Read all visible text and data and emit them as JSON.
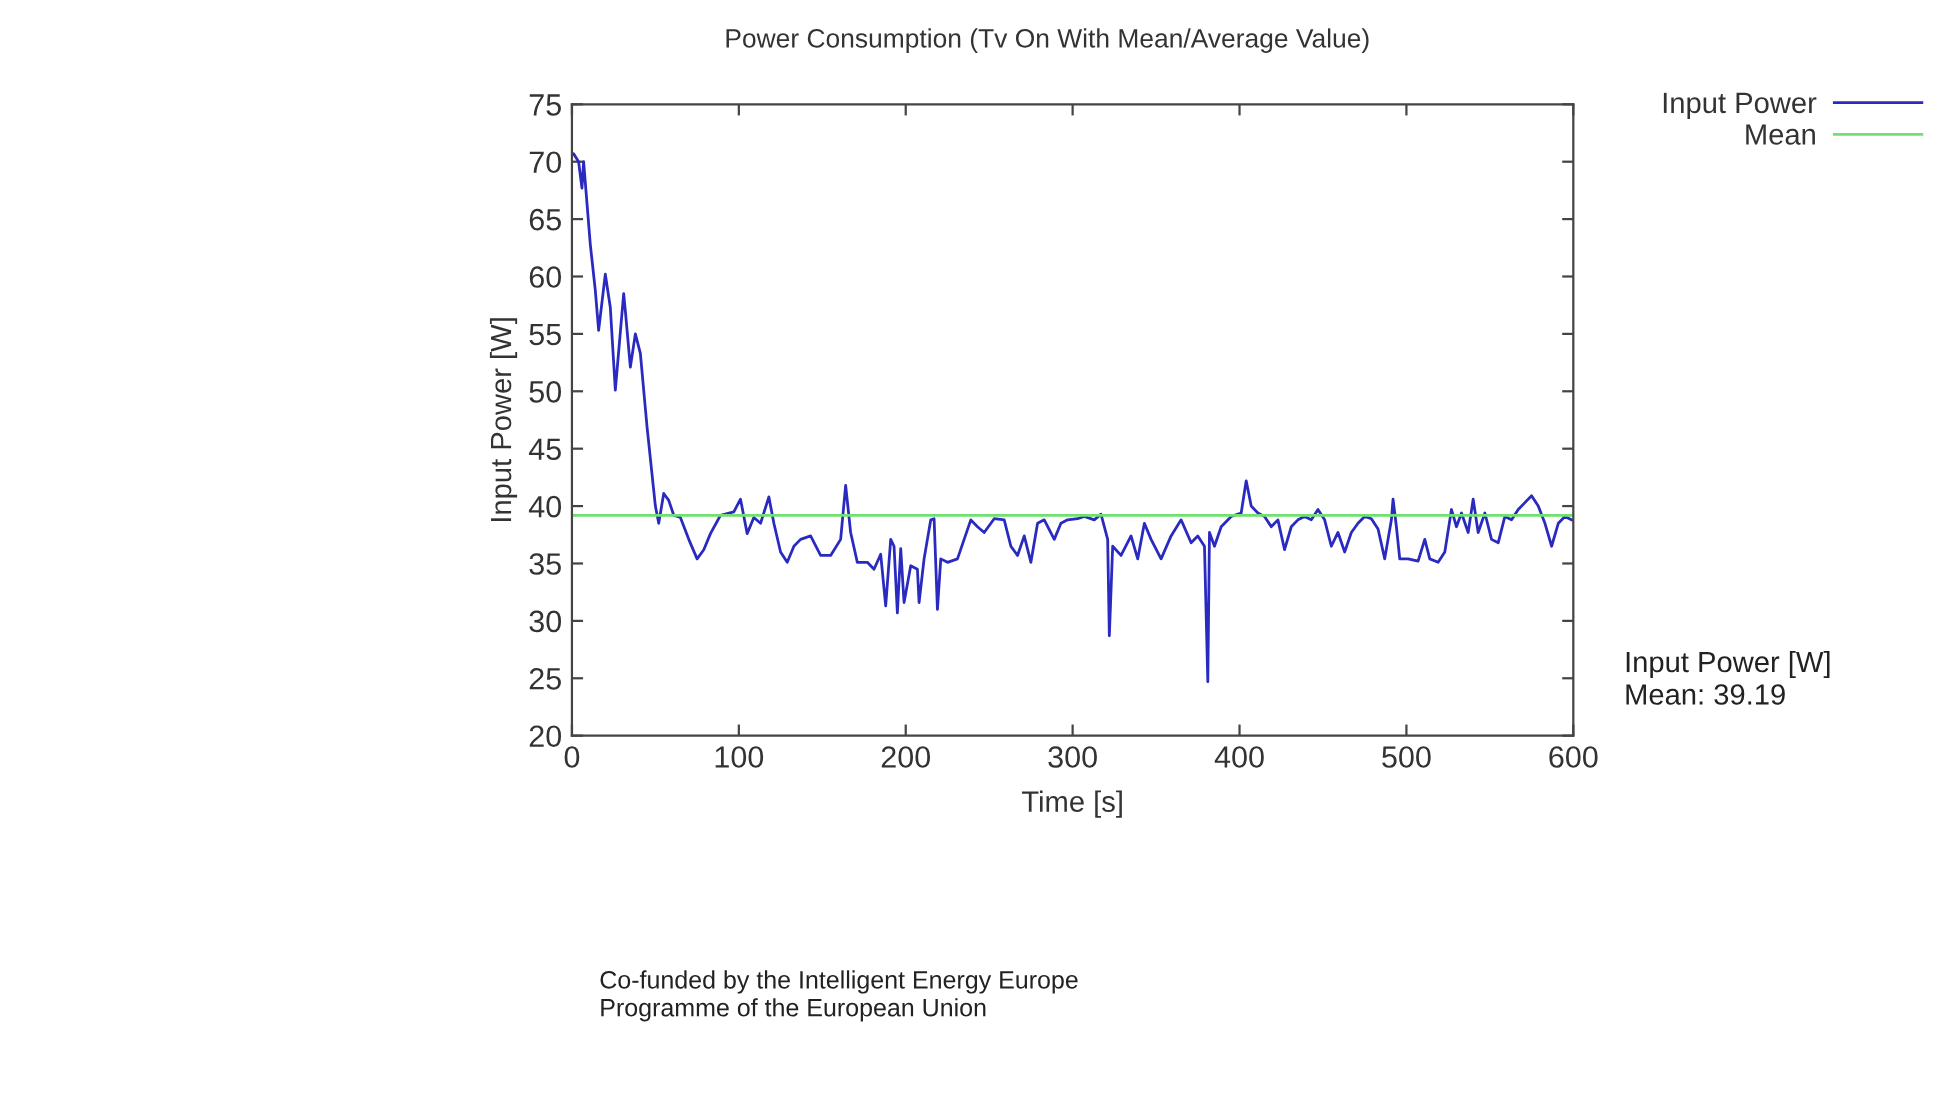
{
  "chart_data": {
    "type": "line",
    "title": "Power Consumption (Tv On With Mean/Average Value)",
    "xlabel": "Time [s]",
    "ylabel": "Input Power [W]",
    "x": [
      0,
      1,
      4,
      6,
      7,
      11,
      14,
      16,
      20,
      23,
      26,
      31,
      32,
      35,
      38,
      41,
      45,
      50,
      52,
      55,
      58,
      61,
      65,
      70,
      75,
      79,
      83,
      89,
      97,
      101,
      105,
      109,
      113,
      118,
      121,
      125,
      129,
      133,
      137,
      143,
      149,
      155,
      161,
      164,
      167,
      171,
      177,
      181,
      185,
      188,
      191,
      193,
      195,
      197,
      199,
      203,
      207,
      208,
      211,
      215,
      217,
      219,
      221,
      225,
      231,
      239,
      243,
      247,
      253,
      259,
      263,
      267,
      271,
      275,
      279,
      283,
      289,
      293,
      297,
      303,
      307,
      313,
      317,
      321,
      322,
      324,
      329,
      335,
      339,
      343,
      347,
      353,
      359,
      365,
      371,
      375,
      379,
      381,
      382,
      385,
      389,
      395,
      401,
      404,
      407,
      411,
      415,
      419,
      423,
      427,
      431,
      435,
      439,
      443,
      447,
      451,
      455,
      459,
      463,
      467,
      471,
      475,
      479,
      483,
      487,
      491,
      492,
      494,
      496,
      501,
      507,
      511,
      514,
      519,
      523,
      527,
      530,
      533,
      537,
      540,
      543,
      547,
      551,
      555,
      559,
      563,
      567,
      571,
      575,
      579,
      583,
      587,
      591,
      595,
      599
    ],
    "series": [
      {
        "name": "Input Power",
        "color": "#2a2ac0",
        "values": [
          70.6,
          70.7,
          70.0,
          67.7,
          70.0,
          62.8,
          58.8,
          55.3,
          60.2,
          57.3,
          50.1,
          58.5,
          57.0,
          52.1,
          55.0,
          53.3,
          46.9,
          40.0,
          38.5,
          41.1,
          40.5,
          39.2,
          39.0,
          37.1,
          35.4,
          36.2,
          37.6,
          39.2,
          39.5,
          40.6,
          37.6,
          39.0,
          38.5,
          40.8,
          38.5,
          36.0,
          35.1,
          36.5,
          37.1,
          37.4,
          35.7,
          35.7,
          37.1,
          41.8,
          37.7,
          35.1,
          35.1,
          34.5,
          35.8,
          31.3,
          37.1,
          36.5,
          30.7,
          36.3,
          31.6,
          34.8,
          34.5,
          31.6,
          35.4,
          38.8,
          38.9,
          31.0,
          35.4,
          35.1,
          35.4,
          38.8,
          38.2,
          37.7,
          38.9,
          38.8,
          36.5,
          35.7,
          37.4,
          35.1,
          38.5,
          38.8,
          37.1,
          38.5,
          38.8,
          38.9,
          39.1,
          38.8,
          39.3,
          37.1,
          28.7,
          36.5,
          35.7,
          37.4,
          35.4,
          38.5,
          37.1,
          35.4,
          37.4,
          38.8,
          36.8,
          37.4,
          36.5,
          24.7,
          37.7,
          36.5,
          38.2,
          39.1,
          39.4,
          42.2,
          40.0,
          39.4,
          39.1,
          38.2,
          38.8,
          36.2,
          38.2,
          38.8,
          39.1,
          38.8,
          39.7,
          38.8,
          36.5,
          37.7,
          36.0,
          37.7,
          38.5,
          39.1,
          38.9,
          38.0,
          35.4,
          38.8,
          40.6,
          38.2,
          35.4,
          35.4,
          35.2,
          37.1,
          35.4,
          35.1,
          36.0,
          39.7,
          38.2,
          39.4,
          37.7,
          40.6,
          37.7,
          39.4,
          37.1,
          36.8,
          39.1,
          38.8,
          39.7,
          40.3,
          40.9,
          40.0,
          38.5,
          36.5,
          38.5,
          39.1,
          38.8
        ]
      }
    ],
    "xlim": [
      0,
      600
    ],
    "ylim": [
      20,
      75
    ],
    "xticks": [
      0,
      100,
      200,
      300,
      400,
      500,
      600
    ],
    "yticks": [
      20,
      25,
      30,
      35,
      40,
      45,
      50,
      55,
      60,
      65,
      70,
      75
    ],
    "ref_lines": [
      {
        "axis": "y",
        "value": 39.19,
        "label": "Mean",
        "color": "#70e070"
      }
    ],
    "legend": "top right",
    "annotations": [
      "Input Power [W]\nMean: 39.19",
      "Co-funded by the Intelligent Energy Europe\nProgramme of the European Union"
    ]
  }
}
